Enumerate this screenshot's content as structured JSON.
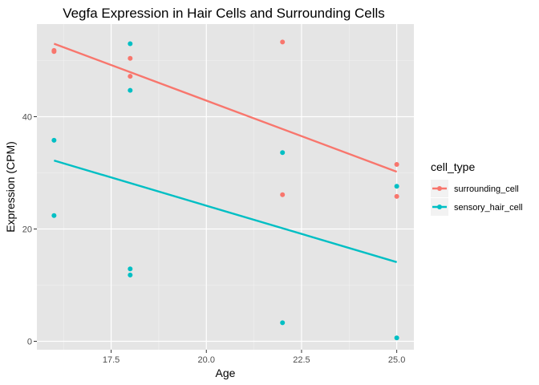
{
  "chart_data": {
    "type": "scatter",
    "title": "Vegfa Expression in Hair Cells and Surrounding Cells",
    "xlabel": "Age",
    "ylabel": "Expression (CPM)",
    "xlim": [
      15.55,
      25.45
    ],
    "ylim": [
      -1.5,
      56.5
    ],
    "x_ticks": [
      17.5,
      20.0,
      22.5,
      25.0
    ],
    "x_tick_labels": [
      "17.5",
      "20.0",
      "22.5",
      "25.0"
    ],
    "y_ticks": [
      0,
      20,
      40
    ],
    "y_tick_labels": [
      "0",
      "20",
      "40"
    ],
    "grid": true,
    "legend": {
      "title": "cell_type",
      "position": "right"
    },
    "series": [
      {
        "name": "surrounding_cell",
        "color": "#F8766D",
        "points": [
          {
            "x": 16,
            "y": 51.6
          },
          {
            "x": 16,
            "y": 51.8
          },
          {
            "x": 18,
            "y": 50.4
          },
          {
            "x": 18,
            "y": 47.2
          },
          {
            "x": 22,
            "y": 53.3
          },
          {
            "x": 22,
            "y": 26.1
          },
          {
            "x": 25,
            "y": 31.5
          },
          {
            "x": 25,
            "y": 25.8
          }
        ],
        "fit_line": {
          "x": [
            16,
            25
          ],
          "y": [
            53.0,
            30.2
          ]
        }
      },
      {
        "name": "sensory_hair_cell",
        "color": "#00BFC4",
        "points": [
          {
            "x": 16,
            "y": 35.8
          },
          {
            "x": 16,
            "y": 22.4
          },
          {
            "x": 18,
            "y": 53.0
          },
          {
            "x": 18,
            "y": 44.7
          },
          {
            "x": 18,
            "y": 12.9
          },
          {
            "x": 18,
            "y": 11.8
          },
          {
            "x": 22,
            "y": 33.6
          },
          {
            "x": 22,
            "y": 3.3
          },
          {
            "x": 25,
            "y": 27.6
          },
          {
            "x": 25,
            "y": 0.6
          }
        ],
        "fit_line": {
          "x": [
            16,
            25
          ],
          "y": [
            32.2,
            14.1
          ]
        }
      }
    ]
  }
}
